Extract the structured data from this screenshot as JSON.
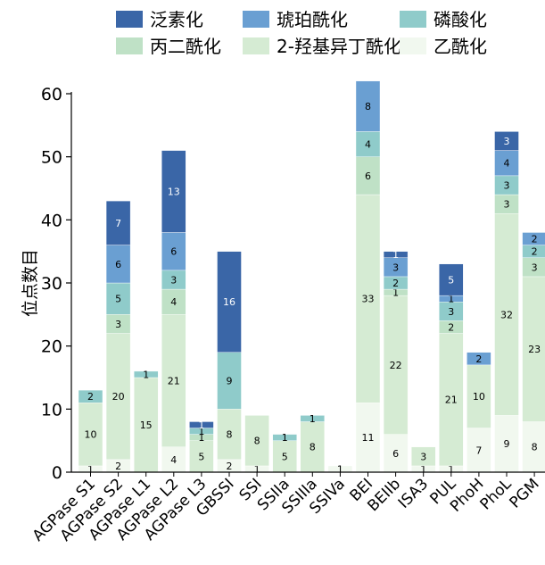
{
  "chart_data": {
    "type": "bar",
    "stacked": true,
    "ylabel": "位点数目",
    "ylim": [
      0,
      60
    ],
    "yticks": [
      0,
      10,
      20,
      30,
      40,
      50,
      60
    ],
    "legend_placement": "top",
    "categories": [
      "AGPase S1",
      "AGPase S2",
      "AGPase L1",
      "AGPase L2",
      "AGPase L3",
      "GBSSI",
      "SSI",
      "SSIIa",
      "SSIIIa",
      "SSIVa",
      "BEI",
      "BEIIb",
      "ISA3",
      "PUL",
      "PhoH",
      "PhoL",
      "PGM"
    ],
    "series": [
      {
        "name": "乙酰化",
        "color": "#f1f8ef",
        "values": [
          1,
          2,
          0,
          4,
          0,
          2,
          1,
          0,
          0,
          1,
          11,
          6,
          1,
          1,
          7,
          9,
          8
        ]
      },
      {
        "name": "2-羟基异丁酰化",
        "color": "#d5ebd3",
        "values": [
          10,
          20,
          15,
          21,
          5,
          8,
          8,
          5,
          8,
          0,
          33,
          22,
          3,
          21,
          10,
          32,
          23
        ]
      },
      {
        "name": "丙二酰化",
        "color": "#bfe1c6",
        "values": [
          0,
          3,
          0,
          4,
          1,
          0,
          0,
          0,
          0,
          0,
          6,
          1,
          0,
          2,
          0,
          3,
          3
        ]
      },
      {
        "name": "磷酸化",
        "color": "#8fcbca",
        "values": [
          2,
          5,
          1,
          3,
          1,
          9,
          0,
          1,
          1,
          0,
          4,
          2,
          0,
          3,
          0,
          3,
          2
        ]
      },
      {
        "name": "琥珀酰化",
        "color": "#6a9fd2",
        "values": [
          0,
          6,
          0,
          6,
          0,
          0,
          0,
          0,
          0,
          0,
          8,
          3,
          0,
          1,
          2,
          4,
          2
        ]
      },
      {
        "name": "泛素化",
        "color": "#3a66a7",
        "values": [
          0,
          7,
          0,
          13,
          1,
          16,
          0,
          0,
          0,
          0,
          0,
          1,
          0,
          5,
          0,
          3,
          0
        ]
      }
    ],
    "legend_order": [
      "泛素化",
      "琥珀酰化",
      "磷酸化",
      "丙二酰化",
      "2-羟基异丁酰化",
      "乙酰化"
    ]
  }
}
